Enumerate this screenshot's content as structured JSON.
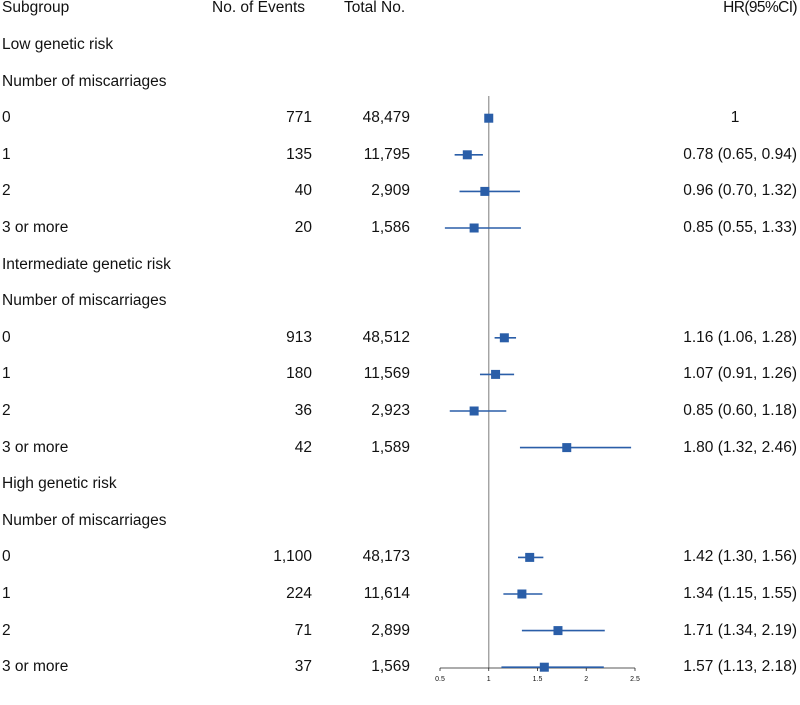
{
  "header": {
    "subgroup": "Subgroup",
    "events": "No. of Events",
    "total": "Total No.",
    "hr": "HR(95%CI)"
  },
  "rows": [
    {
      "kind": "group",
      "label": "Low genetic risk"
    },
    {
      "kind": "subheader",
      "label": "Number of miscarriages"
    },
    {
      "kind": "data",
      "label": "0",
      "events": "771",
      "total": "48,479",
      "hr_text": "1"
    },
    {
      "kind": "data",
      "label": "1",
      "events": "135",
      "total": "11,795",
      "hr_text": "0.78 (0.65, 0.94)"
    },
    {
      "kind": "data",
      "label": "2",
      "events": "40",
      "total": "2,909",
      "hr_text": "0.96 (0.70, 1.32)"
    },
    {
      "kind": "data",
      "label": "3 or more",
      "events": "20",
      "total": "1,586",
      "hr_text": "0.85 (0.55, 1.33)"
    },
    {
      "kind": "group",
      "label": "Intermediate genetic risk"
    },
    {
      "kind": "subheader",
      "label": "Number of miscarriages"
    },
    {
      "kind": "data",
      "label": "0",
      "events": "913",
      "total": "48,512",
      "hr_text": "1.16 (1.06, 1.28)"
    },
    {
      "kind": "data",
      "label": "1",
      "events": "180",
      "total": "11,569",
      "hr_text": "1.07 (0.91, 1.26)"
    },
    {
      "kind": "data",
      "label": "2",
      "events": "36",
      "total": "2,923",
      "hr_text": "0.85 (0.60, 1.18)"
    },
    {
      "kind": "data",
      "label": "3 or more",
      "events": "42",
      "total": "1,589",
      "hr_text": "1.80 (1.32, 2.46)"
    },
    {
      "kind": "group",
      "label": "High genetic risk"
    },
    {
      "kind": "subheader",
      "label": "Number of miscarriages"
    },
    {
      "kind": "data",
      "label": "0",
      "events": "1,100",
      "total": "48,173",
      "hr_text": "1.42 (1.30, 1.56)"
    },
    {
      "kind": "data",
      "label": "1",
      "events": "224",
      "total": "11,614",
      "hr_text": "1.34 (1.15, 1.55)"
    },
    {
      "kind": "data",
      "label": "2",
      "events": "71",
      "total": "2,899",
      "hr_text": "1.71 (1.34, 2.19)"
    },
    {
      "kind": "data",
      "label": "3 or more",
      "events": "37",
      "total": "1,569",
      "hr_text": "1.57 (1.13, 2.18)"
    }
  ],
  "chart_data": {
    "type": "forest",
    "xlim": [
      0.5,
      2.5
    ],
    "ticks": [
      "0.5",
      "1",
      "1.5",
      "2",
      "2.5"
    ],
    "reference_line": 1,
    "color": "#2a5ea8",
    "estimates": [
      {
        "hr": 1.0,
        "lo": 1.0,
        "hi": 1.0
      },
      {
        "hr": 0.78,
        "lo": 0.65,
        "hi": 0.94
      },
      {
        "hr": 0.96,
        "lo": 0.7,
        "hi": 1.32
      },
      {
        "hr": 0.85,
        "lo": 0.55,
        "hi": 1.33
      },
      {
        "hr": 1.16,
        "lo": 1.06,
        "hi": 1.28
      },
      {
        "hr": 1.07,
        "lo": 0.91,
        "hi": 1.26
      },
      {
        "hr": 0.85,
        "lo": 0.6,
        "hi": 1.18
      },
      {
        "hr": 1.8,
        "lo": 1.32,
        "hi": 2.46
      },
      {
        "hr": 1.42,
        "lo": 1.3,
        "hi": 1.56
      },
      {
        "hr": 1.34,
        "lo": 1.15,
        "hi": 1.55
      },
      {
        "hr": 1.71,
        "lo": 1.34,
        "hi": 2.19
      },
      {
        "hr": 1.57,
        "lo": 1.13,
        "hi": 2.18
      }
    ]
  }
}
